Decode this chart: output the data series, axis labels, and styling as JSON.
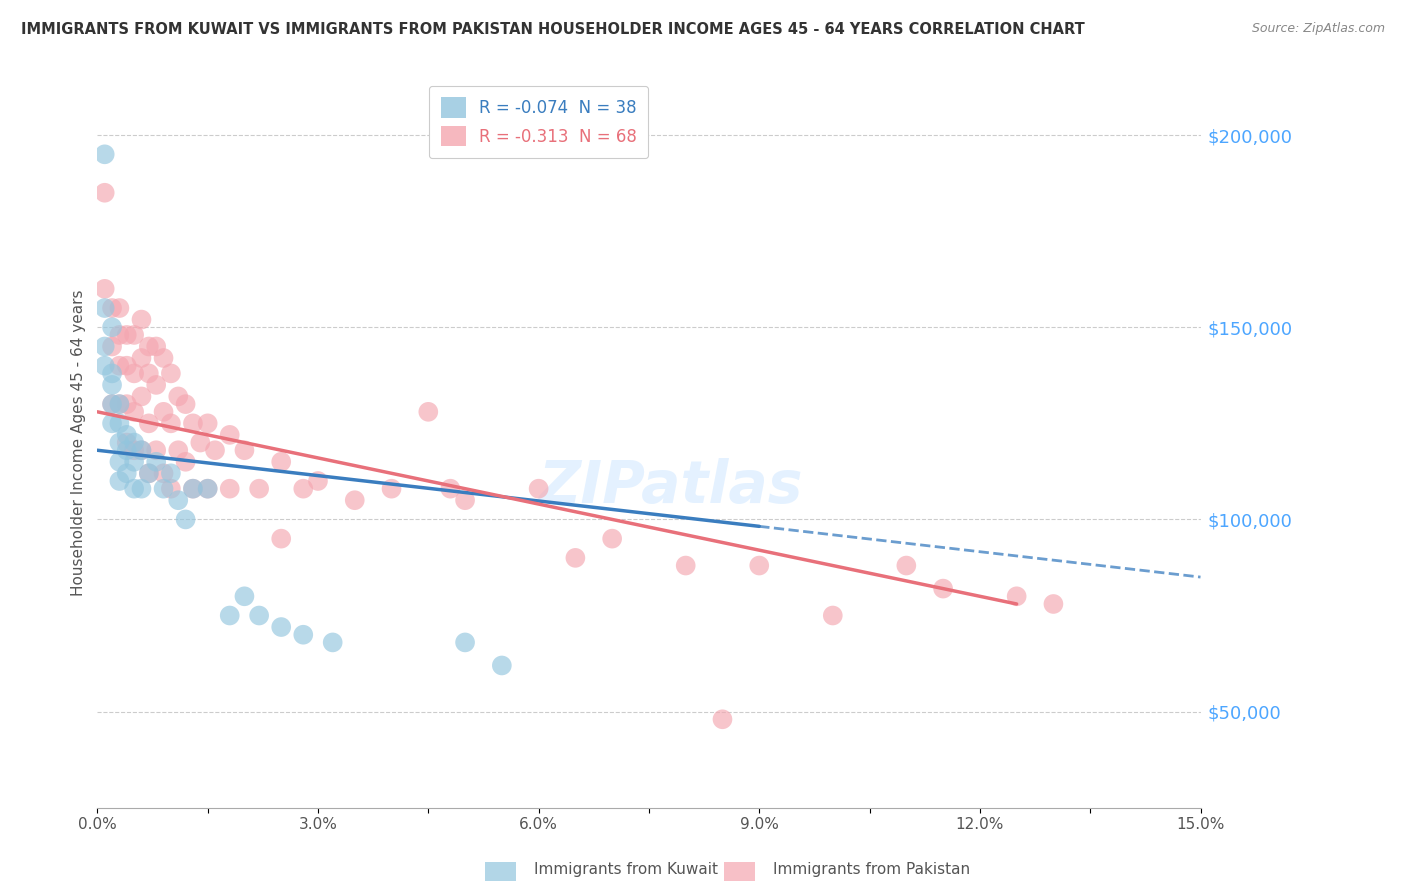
{
  "title": "IMMIGRANTS FROM KUWAIT VS IMMIGRANTS FROM PAKISTAN HOUSEHOLDER INCOME AGES 45 - 64 YEARS CORRELATION CHART",
  "source": "Source: ZipAtlas.com",
  "ylabel": "Householder Income Ages 45 - 64 years",
  "xlim": [
    0,
    0.15
  ],
  "ylim": [
    25000,
    215000
  ],
  "yticks": [
    50000,
    100000,
    150000,
    200000
  ],
  "ytick_labels": [
    "$50,000",
    "$100,000",
    "$150,000",
    "$200,000"
  ],
  "xticks": [
    0.0,
    0.015,
    0.03,
    0.045,
    0.06,
    0.075,
    0.09,
    0.105,
    0.12,
    0.135,
    0.15
  ],
  "xtick_labels": [
    "0.0%",
    "",
    "3.0%",
    "",
    "6.0%",
    "",
    "9.0%",
    "",
    "12.0%",
    "",
    "15.0%"
  ],
  "kuwait_color": "#92c5de",
  "pakistan_color": "#f4a6b0",
  "kuwait_line_color": "#3a7dbf",
  "pakistan_line_color": "#e8707a",
  "kuwait_R": -0.074,
  "kuwait_N": 38,
  "pakistan_R": -0.313,
  "pakistan_N": 68,
  "watermark": "ZIPatlas",
  "background_color": "#ffffff",
  "kuwait_x": [
    0.001,
    0.001,
    0.002,
    0.001,
    0.001,
    0.002,
    0.002,
    0.002,
    0.002,
    0.003,
    0.003,
    0.003,
    0.003,
    0.003,
    0.004,
    0.004,
    0.004,
    0.005,
    0.005,
    0.005,
    0.006,
    0.006,
    0.007,
    0.008,
    0.009,
    0.01,
    0.011,
    0.012,
    0.013,
    0.015,
    0.018,
    0.02,
    0.022,
    0.025,
    0.028,
    0.032,
    0.05,
    0.055
  ],
  "kuwait_y": [
    195000,
    155000,
    150000,
    145000,
    140000,
    138000,
    135000,
    130000,
    125000,
    130000,
    125000,
    120000,
    115000,
    110000,
    122000,
    118000,
    112000,
    120000,
    115000,
    108000,
    118000,
    108000,
    112000,
    115000,
    108000,
    112000,
    105000,
    100000,
    108000,
    108000,
    75000,
    80000,
    75000,
    72000,
    70000,
    68000,
    68000,
    62000
  ],
  "pakistan_x": [
    0.001,
    0.001,
    0.002,
    0.002,
    0.002,
    0.003,
    0.003,
    0.003,
    0.003,
    0.004,
    0.004,
    0.004,
    0.004,
    0.005,
    0.005,
    0.005,
    0.005,
    0.006,
    0.006,
    0.006,
    0.006,
    0.007,
    0.007,
    0.007,
    0.007,
    0.008,
    0.008,
    0.008,
    0.009,
    0.009,
    0.009,
    0.01,
    0.01,
    0.01,
    0.011,
    0.011,
    0.012,
    0.012,
    0.013,
    0.013,
    0.014,
    0.015,
    0.015,
    0.016,
    0.018,
    0.018,
    0.02,
    0.022,
    0.025,
    0.025,
    0.028,
    0.03,
    0.035,
    0.04,
    0.045,
    0.048,
    0.05,
    0.06,
    0.065,
    0.07,
    0.08,
    0.085,
    0.09,
    0.1,
    0.11,
    0.115,
    0.125,
    0.13
  ],
  "pakistan_y": [
    185000,
    160000,
    155000,
    145000,
    130000,
    155000,
    148000,
    140000,
    130000,
    148000,
    140000,
    130000,
    120000,
    148000,
    138000,
    128000,
    118000,
    152000,
    142000,
    132000,
    118000,
    145000,
    138000,
    125000,
    112000,
    145000,
    135000,
    118000,
    142000,
    128000,
    112000,
    138000,
    125000,
    108000,
    132000,
    118000,
    130000,
    115000,
    125000,
    108000,
    120000,
    125000,
    108000,
    118000,
    122000,
    108000,
    118000,
    108000,
    115000,
    95000,
    108000,
    110000,
    105000,
    108000,
    128000,
    108000,
    105000,
    108000,
    90000,
    95000,
    88000,
    48000,
    88000,
    75000,
    88000,
    82000,
    80000,
    78000
  ]
}
